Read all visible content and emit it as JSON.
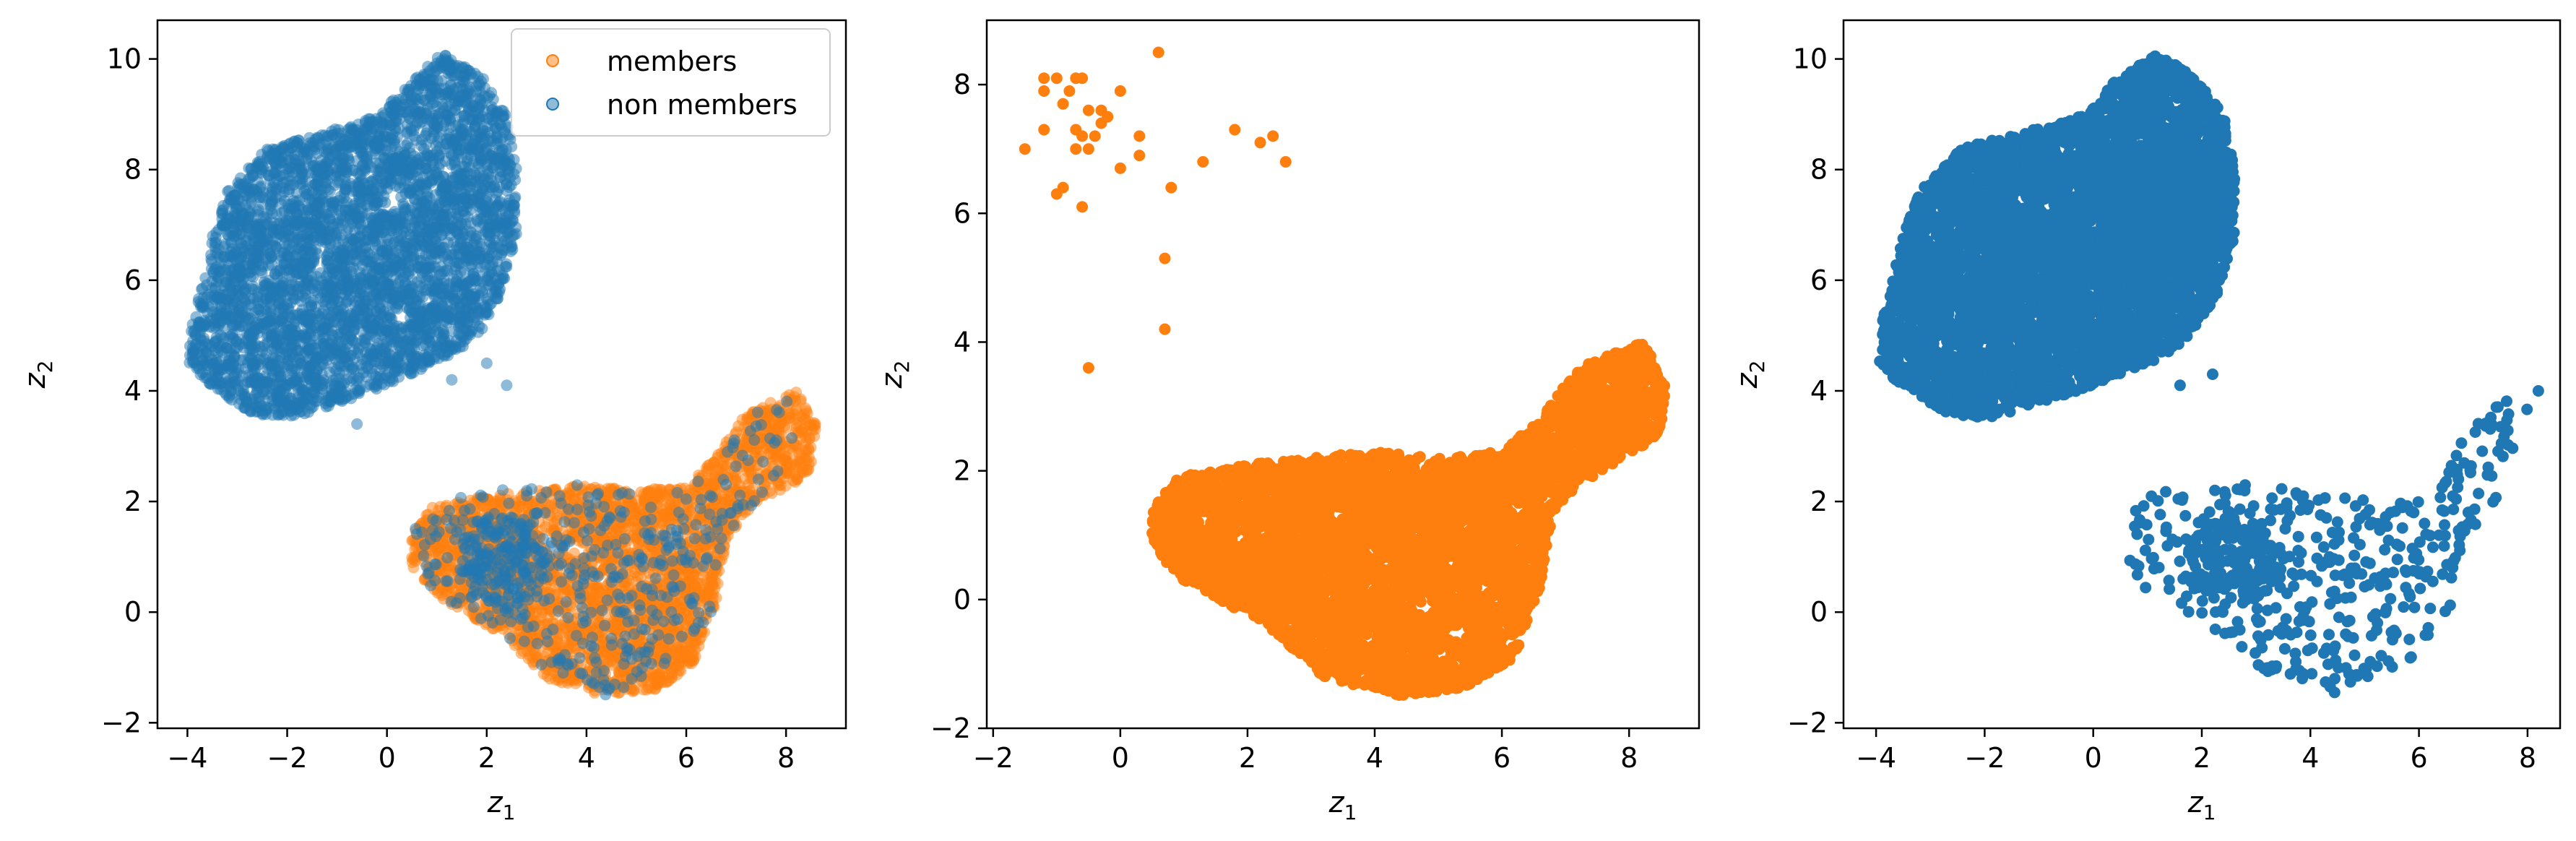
{
  "colors": {
    "members": "#ff7f0e",
    "non_members": "#1f77b4"
  },
  "chart_data": [
    {
      "type": "scatter",
      "panel": "left",
      "xlabel_base": "z",
      "xlabel_sub": "1",
      "ylabel_base": "z",
      "ylabel_sub": "2",
      "xlim": [
        -4.6,
        9.2
      ],
      "ylim": [
        -2.1,
        10.7
      ],
      "xticks": [
        -4,
        -2,
        0,
        2,
        4,
        6,
        8
      ],
      "yticks": [
        -2,
        0,
        2,
        4,
        6,
        8,
        10
      ],
      "grid": false,
      "legend": {
        "placement": "top-right",
        "entries": [
          "members",
          "non members"
        ]
      },
      "series": [
        {
          "name": "members",
          "color": "#ff7f0e",
          "alpha": 0.5,
          "clusters": [
            {
              "shape": "polygon",
              "n": 3000,
              "poly": [
                [
                  0.5,
                  1.4
                ],
                [
                  0.9,
                  1.9
                ],
                [
                  2.0,
                  2.1
                ],
                [
                  3.0,
                  2.2
                ],
                [
                  4.0,
                  2.3
                ],
                [
                  5.0,
                  2.2
                ],
                [
                  6.0,
                  2.3
                ],
                [
                  6.6,
                  2.8
                ],
                [
                  7.2,
                  3.6
                ],
                [
                  8.2,
                  4.0
                ],
                [
                  8.6,
                  3.4
                ],
                [
                  8.5,
                  2.6
                ],
                [
                  8.0,
                  2.2
                ],
                [
                  7.2,
                  1.8
                ],
                [
                  6.8,
                  1.3
                ],
                [
                  6.6,
                  0.2
                ],
                [
                  6.2,
                  -0.9
                ],
                [
                  5.4,
                  -1.4
                ],
                [
                  4.3,
                  -1.5
                ],
                [
                  3.2,
                  -1.2
                ],
                [
                  2.3,
                  -0.4
                ],
                [
                  1.0,
                  0.3
                ],
                [
                  0.5,
                  0.8
                ]
              ]
            }
          ],
          "points": []
        },
        {
          "name": "non members",
          "color": "#1f77b4",
          "alpha": 0.5,
          "clusters": [
            {
              "shape": "polygon",
              "n": 4200,
              "poly": [
                [
                  -4.0,
                  4.5
                ],
                [
                  -3.4,
                  4.0
                ],
                [
                  -2.7,
                  3.6
                ],
                [
                  -2.0,
                  3.5
                ],
                [
                  -1.2,
                  3.7
                ],
                [
                  -0.3,
                  4.0
                ],
                [
                  0.5,
                  4.3
                ],
                [
                  1.3,
                  4.6
                ],
                [
                  1.9,
                  5.1
                ],
                [
                  2.3,
                  5.8
                ],
                [
                  2.6,
                  6.8
                ],
                [
                  2.6,
                  8.0
                ],
                [
                  2.4,
                  9.0
                ],
                [
                  1.9,
                  9.7
                ],
                [
                  1.1,
                  10.1
                ],
                [
                  0.4,
                  9.6
                ],
                [
                  -0.1,
                  9.0
                ],
                [
                  -0.8,
                  8.8
                ],
                [
                  -1.6,
                  8.6
                ],
                [
                  -2.4,
                  8.4
                ],
                [
                  -3.2,
                  7.6
                ],
                [
                  -3.5,
                  6.8
                ],
                [
                  -3.7,
                  6.0
                ],
                [
                  -3.9,
                  5.2
                ]
              ]
            },
            {
              "shape": "polygon",
              "n": 420,
              "poly": [
                [
                  0.5,
                  1.6
                ],
                [
                  1.0,
                  2.0
                ],
                [
                  2.0,
                  2.2
                ],
                [
                  3.0,
                  2.3
                ],
                [
                  4.0,
                  2.3
                ],
                [
                  5.5,
                  2.1
                ],
                [
                  6.5,
                  2.5
                ],
                [
                  7.2,
                  3.5
                ],
                [
                  8.0,
                  3.9
                ],
                [
                  8.2,
                  3.0
                ],
                [
                  7.6,
                  2.2
                ],
                [
                  6.8,
                  1.4
                ],
                [
                  6.5,
                  0.0
                ],
                [
                  5.8,
                  -1.0
                ],
                [
                  4.4,
                  -1.5
                ],
                [
                  3.2,
                  -1.1
                ],
                [
                  2.2,
                  -0.3
                ],
                [
                  1.0,
                  0.3
                ],
                [
                  0.5,
                  0.9
                ]
              ]
            },
            {
              "shape": "ellipse",
              "n": 180,
              "cx": 2.3,
              "cy": 0.9,
              "rx": 0.9,
              "ry": 0.9
            }
          ],
          "points": [
            [
              1.3,
              4.2
            ],
            [
              2.4,
              4.1
            ],
            [
              2.0,
              4.5
            ],
            [
              -0.6,
              3.4
            ]
          ]
        }
      ]
    },
    {
      "type": "scatter",
      "panel": "middle",
      "xlabel_base": "z",
      "xlabel_sub": "1",
      "ylabel_base": "z",
      "ylabel_sub": "2",
      "xlim": [
        -2.1,
        9.1
      ],
      "ylim": [
        -2.0,
        9.0
      ],
      "xticks": [
        -2,
        0,
        2,
        4,
        6,
        8
      ],
      "yticks": [
        -2,
        0,
        2,
        4,
        6,
        8
      ],
      "grid": false,
      "legend": null,
      "series": [
        {
          "name": "members",
          "color": "#ff7f0e",
          "alpha": 1.0,
          "clusters": [
            {
              "shape": "polygon",
              "n": 4800,
              "poly": [
                [
                  0.5,
                  1.4
                ],
                [
                  0.9,
                  1.9
                ],
                [
                  2.0,
                  2.1
                ],
                [
                  3.0,
                  2.2
                ],
                [
                  4.0,
                  2.3
                ],
                [
                  5.0,
                  2.2
                ],
                [
                  6.0,
                  2.3
                ],
                [
                  6.6,
                  2.8
                ],
                [
                  7.2,
                  3.6
                ],
                [
                  8.2,
                  4.0
                ],
                [
                  8.6,
                  3.4
                ],
                [
                  8.5,
                  2.6
                ],
                [
                  8.0,
                  2.2
                ],
                [
                  7.2,
                  1.8
                ],
                [
                  6.8,
                  1.3
                ],
                [
                  6.6,
                  0.2
                ],
                [
                  6.2,
                  -0.9
                ],
                [
                  5.4,
                  -1.4
                ],
                [
                  4.3,
                  -1.5
                ],
                [
                  3.2,
                  -1.2
                ],
                [
                  2.3,
                  -0.4
                ],
                [
                  1.0,
                  0.3
                ],
                [
                  0.5,
                  0.8
                ]
              ]
            }
          ],
          "points": [
            [
              -1.5,
              7.0
            ],
            [
              -1.2,
              8.1
            ],
            [
              -1.0,
              8.1
            ],
            [
              -1.2,
              7.9
            ],
            [
              -0.9,
              7.7
            ],
            [
              -0.8,
              7.9
            ],
            [
              -0.7,
              8.1
            ],
            [
              -0.6,
              8.1
            ],
            [
              -0.5,
              7.6
            ],
            [
              -0.7,
              7.3
            ],
            [
              -0.6,
              7.2
            ],
            [
              -0.5,
              7.0
            ],
            [
              -0.4,
              7.2
            ],
            [
              -0.3,
              7.4
            ],
            [
              -0.3,
              7.6
            ],
            [
              -0.2,
              7.5
            ],
            [
              0.0,
              7.9
            ],
            [
              -1.2,
              7.3
            ],
            [
              -1.0,
              6.3
            ],
            [
              -0.9,
              6.4
            ],
            [
              -0.7,
              7.0
            ],
            [
              -0.6,
              6.1
            ],
            [
              0.0,
              6.7
            ],
            [
              0.3,
              6.9
            ],
            [
              0.3,
              7.2
            ],
            [
              0.6,
              8.5
            ],
            [
              0.7,
              5.3
            ],
            [
              0.7,
              4.2
            ],
            [
              0.8,
              6.4
            ],
            [
              1.3,
              6.8
            ],
            [
              1.8,
              7.3
            ],
            [
              2.2,
              7.1
            ],
            [
              2.4,
              7.2
            ],
            [
              2.6,
              6.8
            ],
            [
              -0.5,
              3.6
            ]
          ]
        }
      ]
    },
    {
      "type": "scatter",
      "panel": "right",
      "xlabel_base": "z",
      "xlabel_sub": "1",
      "ylabel_base": "z",
      "ylabel_sub": "2",
      "xlim": [
        -4.6,
        8.6
      ],
      "ylim": [
        -2.1,
        10.7
      ],
      "xticks": [
        -4,
        -2,
        0,
        2,
        4,
        6,
        8
      ],
      "yticks": [
        -2,
        0,
        2,
        4,
        6,
        8,
        10
      ],
      "grid": false,
      "legend": null,
      "series": [
        {
          "name": "non members",
          "color": "#1f77b4",
          "alpha": 1.0,
          "clusters": [
            {
              "shape": "polygon",
              "n": 5200,
              "poly": [
                [
                  -4.0,
                  4.5
                ],
                [
                  -3.4,
                  4.0
                ],
                [
                  -2.7,
                  3.6
                ],
                [
                  -2.0,
                  3.5
                ],
                [
                  -1.2,
                  3.7
                ],
                [
                  -0.3,
                  4.0
                ],
                [
                  0.5,
                  4.3
                ],
                [
                  1.3,
                  4.6
                ],
                [
                  1.9,
                  5.1
                ],
                [
                  2.3,
                  5.8
                ],
                [
                  2.6,
                  6.8
                ],
                [
                  2.6,
                  8.0
                ],
                [
                  2.4,
                  9.0
                ],
                [
                  1.9,
                  9.7
                ],
                [
                  1.1,
                  10.1
                ],
                [
                  0.4,
                  9.6
                ],
                [
                  -0.1,
                  9.0
                ],
                [
                  -0.8,
                  8.8
                ],
                [
                  -1.6,
                  8.6
                ],
                [
                  -2.4,
                  8.4
                ],
                [
                  -3.2,
                  7.6
                ],
                [
                  -3.5,
                  6.8
                ],
                [
                  -3.7,
                  6.0
                ],
                [
                  -3.9,
                  5.2
                ]
              ]
            },
            {
              "shape": "polygon",
              "n": 420,
              "poly": [
                [
                  0.6,
                  1.6
                ],
                [
                  1.0,
                  2.2
                ],
                [
                  2.0,
                  2.3
                ],
                [
                  3.0,
                  2.3
                ],
                [
                  4.0,
                  2.3
                ],
                [
                  5.2,
                  2.0
                ],
                [
                  6.2,
                  2.0
                ],
                [
                  6.8,
                  3.2
                ],
                [
                  7.4,
                  3.8
                ],
                [
                  8.0,
                  3.9
                ],
                [
                  8.0,
                  3.0
                ],
                [
                  7.6,
                  2.2
                ],
                [
                  6.9,
                  1.4
                ],
                [
                  6.6,
                  0.0
                ],
                [
                  5.8,
                  -0.9
                ],
                [
                  4.4,
                  -1.5
                ],
                [
                  3.2,
                  -1.1
                ],
                [
                  2.2,
                  -0.3
                ],
                [
                  1.0,
                  0.4
                ],
                [
                  0.6,
                  0.9
                ]
              ]
            },
            {
              "shape": "ellipse",
              "n": 150,
              "cx": 2.6,
              "cy": 0.9,
              "rx": 0.9,
              "ry": 0.8
            }
          ],
          "points": [
            [
              8.2,
              4.0
            ],
            [
              1.6,
              4.1
            ],
            [
              2.2,
              4.3
            ]
          ]
        }
      ]
    }
  ]
}
